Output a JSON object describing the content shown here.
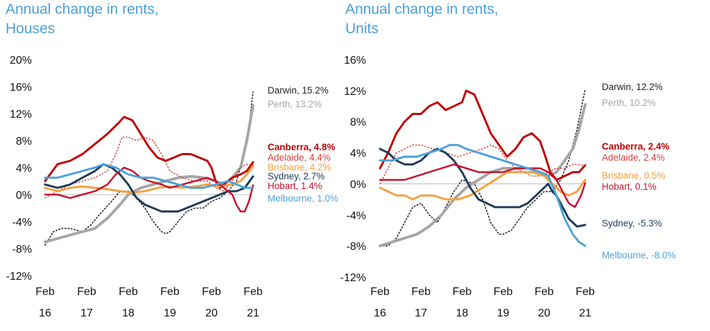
{
  "chart_data": [
    {
      "type": "line",
      "title_line1": "Annual change in rents,",
      "title_line2": "Houses",
      "ylim": [
        -12,
        20
      ],
      "yticks": [
        -12,
        -8,
        -4,
        0,
        4,
        8,
        12,
        16,
        20
      ],
      "ytick_labels": [
        "-12%",
        "-8%",
        "-4%",
        "0%",
        "4%",
        "8%",
        "12%",
        "16%",
        "20%"
      ],
      "xlim": [
        2016.0,
        2021.0
      ],
      "xtick_labels": [
        {
          "month": "Feb",
          "year": "16"
        },
        {
          "month": "Feb",
          "year": "17"
        },
        {
          "month": "Feb",
          "year": "18"
        },
        {
          "month": "Feb",
          "year": "19"
        },
        {
          "month": "Feb",
          "year": "20"
        },
        {
          "month": "Feb",
          "year": "21"
        }
      ],
      "grid": false,
      "zero_line": true,
      "series": [
        {
          "name": "Darwin",
          "label": "Darwin, 15.2%",
          "color": "#222222",
          "style": "dotted",
          "width": 1.6,
          "bold": false,
          "x": [
            2016.0,
            2016.2,
            2016.4,
            2016.6,
            2016.9,
            2017.1,
            2017.3,
            2017.6,
            2017.8,
            2018.0,
            2018.2,
            2018.4,
            2018.6,
            2018.8,
            2018.9,
            2019.0,
            2019.2,
            2019.4,
            2019.6,
            2019.8,
            2020.0,
            2020.2,
            2020.4,
            2020.6,
            2020.75,
            2020.9,
            2021.0
          ],
          "y": [
            -7.5,
            -5.5,
            -5.0,
            -5.0,
            -5.5,
            -4.5,
            -3.0,
            -1.0,
            0.5,
            0.5,
            -0.5,
            -2.0,
            -4.0,
            -5.5,
            -5.8,
            -5.5,
            -4.0,
            -2.5,
            -2.0,
            -2.0,
            -1.0,
            -0.5,
            0.5,
            2.0,
            5.0,
            10.0,
            15.2
          ]
        },
        {
          "name": "Perth",
          "label": "Perth, 13.2%",
          "color": "#a6a6a6",
          "style": "solid",
          "width": 4,
          "bold": false,
          "x": [
            2016.0,
            2016.3,
            2016.6,
            2016.9,
            2017.2,
            2017.5,
            2017.8,
            2018.0,
            2018.3,
            2018.6,
            2018.9,
            2019.2,
            2019.5,
            2019.8,
            2020.1,
            2020.3,
            2020.5,
            2020.7,
            2020.85,
            2021.0
          ],
          "y": [
            -7.0,
            -6.5,
            -6.0,
            -5.5,
            -5.0,
            -3.5,
            -1.5,
            0.0,
            1.0,
            1.5,
            2.0,
            2.5,
            2.7,
            2.5,
            2.0,
            1.5,
            2.5,
            4.0,
            8.0,
            13.2
          ]
        },
        {
          "name": "Canberra",
          "label": "Canberra, 4.8%",
          "color": "#c00000",
          "style": "solid",
          "width": 3,
          "bold": true,
          "x": [
            2016.0,
            2016.3,
            2016.6,
            2016.9,
            2017.2,
            2017.5,
            2017.75,
            2017.9,
            2018.1,
            2018.3,
            2018.5,
            2018.7,
            2018.9,
            2019.1,
            2019.3,
            2019.5,
            2019.7,
            2019.9,
            2020.0,
            2020.1,
            2020.2,
            2020.3,
            2020.5,
            2020.7,
            2020.85,
            2021.0
          ],
          "y": [
            2.0,
            4.5,
            5.0,
            6.0,
            7.5,
            9.0,
            10.5,
            11.5,
            11.0,
            9.0,
            7.0,
            5.5,
            5.0,
            5.5,
            6.0,
            6.0,
            5.5,
            5.0,
            4.0,
            2.0,
            1.0,
            1.5,
            2.5,
            3.0,
            3.5,
            4.8
          ]
        },
        {
          "name": "Adelaide",
          "label": "Adelaide, 4.4%",
          "color": "#d44040",
          "style": "dotted",
          "width": 1.4,
          "bold": false,
          "x": [
            2016.0,
            2016.3,
            2016.6,
            2016.9,
            2017.2,
            2017.5,
            2017.7,
            2017.85,
            2018.0,
            2018.2,
            2018.4,
            2018.6,
            2018.8,
            2019.0,
            2019.3,
            2019.6,
            2019.9,
            2020.1,
            2020.3,
            2020.5,
            2020.7,
            2020.85,
            2021.0
          ],
          "y": [
            -0.5,
            0.5,
            1.5,
            2.0,
            2.5,
            3.5,
            6.0,
            8.5,
            8.5,
            8.0,
            8.5,
            8.0,
            6.0,
            3.5,
            2.5,
            2.0,
            2.0,
            1.0,
            0.5,
            2.0,
            4.0,
            4.5,
            4.4
          ]
        },
        {
          "name": "Brisbane",
          "label": "Brisbane, 4.2%",
          "color": "#f5a040",
          "style": "solid",
          "width": 3,
          "bold": false,
          "x": [
            2016.0,
            2016.3,
            2016.6,
            2016.9,
            2017.2,
            2017.5,
            2017.8,
            2018.1,
            2018.4,
            2018.7,
            2019.0,
            2019.3,
            2019.6,
            2019.9,
            2020.2,
            2020.5,
            2020.7,
            2020.85,
            2021.0
          ],
          "y": [
            1.0,
            0.5,
            1.0,
            1.2,
            1.0,
            0.8,
            0.5,
            0.3,
            0.5,
            1.0,
            1.2,
            1.0,
            1.2,
            1.5,
            1.2,
            1.5,
            2.0,
            3.0,
            4.2
          ]
        },
        {
          "name": "Sydney",
          "label": "Sydney, 2.7%",
          "color": "#1f3b57",
          "style": "solid",
          "width": 3,
          "bold": false,
          "x": [
            2016.0,
            2016.3,
            2016.6,
            2016.9,
            2017.2,
            2017.4,
            2017.6,
            2017.8,
            2018.0,
            2018.2,
            2018.4,
            2018.6,
            2018.8,
            2019.0,
            2019.2,
            2019.4,
            2019.6,
            2019.8,
            2020.0,
            2020.2,
            2020.4,
            2020.6,
            2020.8,
            2021.0
          ],
          "y": [
            1.5,
            1.0,
            1.5,
            2.5,
            3.5,
            4.5,
            4.0,
            3.0,
            1.5,
            -0.5,
            -1.5,
            -2.0,
            -2.5,
            -2.5,
            -2.5,
            -2.0,
            -1.5,
            -1.0,
            -0.5,
            0.0,
            0.5,
            0.5,
            1.0,
            2.7
          ]
        },
        {
          "name": "Hobart",
          "label": "Hobart, 1.4%",
          "color": "#c8102e",
          "style": "solid",
          "width": 2.5,
          "bold": false,
          "x": [
            2016.0,
            2016.3,
            2016.6,
            2016.9,
            2017.2,
            2017.5,
            2017.7,
            2017.9,
            2018.1,
            2018.3,
            2018.5,
            2018.8,
            2019.0,
            2019.3,
            2019.6,
            2019.9,
            2020.1,
            2020.3,
            2020.5,
            2020.6,
            2020.7,
            2020.8,
            2020.9,
            2021.0
          ],
          "y": [
            0.0,
            0.0,
            -0.5,
            0.0,
            0.5,
            1.5,
            3.0,
            4.0,
            3.5,
            2.5,
            2.0,
            1.5,
            1.0,
            1.5,
            2.0,
            2.5,
            2.0,
            1.0,
            0.0,
            -1.5,
            -2.5,
            -2.5,
            -1.0,
            1.4
          ]
        },
        {
          "name": "Melbourne",
          "label": "Melbourne, 1.0%",
          "color": "#4ba3d9",
          "style": "solid",
          "width": 3,
          "bold": false,
          "x": [
            2016.0,
            2016.3,
            2016.6,
            2016.9,
            2017.2,
            2017.4,
            2017.7,
            2018.0,
            2018.3,
            2018.6,
            2018.9,
            2019.2,
            2019.5,
            2019.8,
            2020.1,
            2020.4,
            2020.6,
            2020.8,
            2021.0
          ],
          "y": [
            2.5,
            2.5,
            3.0,
            3.5,
            4.0,
            4.5,
            4.0,
            3.0,
            2.5,
            2.5,
            2.0,
            1.5,
            1.0,
            1.0,
            1.5,
            2.0,
            1.5,
            1.0,
            1.0
          ]
        }
      ]
    },
    {
      "type": "line",
      "title_line1": "Annual change in rents,",
      "title_line2": "Units",
      "ylim": [
        -12,
        16
      ],
      "yticks": [
        -12,
        -8,
        -4,
        0,
        4,
        8,
        12,
        16
      ],
      "ytick_labels": [
        "-12%",
        "-8%",
        "-4%",
        "0%",
        "4%",
        "8%",
        "12%",
        "16%"
      ],
      "xlim": [
        2016.0,
        2021.0
      ],
      "xtick_labels": [
        {
          "month": "Feb",
          "year": "16"
        },
        {
          "month": "Feb",
          "year": "17"
        },
        {
          "month": "Feb",
          "year": "18"
        },
        {
          "month": "Feb",
          "year": "19"
        },
        {
          "month": "Feb",
          "year": "20"
        },
        {
          "month": "Feb",
          "year": "21"
        }
      ],
      "grid": false,
      "zero_line": true,
      "series": [
        {
          "name": "Darwin",
          "label": "Darwin, 12.2%",
          "color": "#222222",
          "style": "dotted",
          "width": 1.6,
          "bold": false,
          "x": [
            2016.0,
            2016.2,
            2016.4,
            2016.6,
            2016.8,
            2017.0,
            2017.2,
            2017.4,
            2017.6,
            2017.8,
            2018.0,
            2018.3,
            2018.5,
            2018.7,
            2018.9,
            2019.0,
            2019.2,
            2019.4,
            2019.6,
            2019.8,
            2020.0,
            2020.2,
            2020.4,
            2020.6,
            2020.8,
            2021.0
          ],
          "y": [
            -8.0,
            -8.0,
            -7.0,
            -5.0,
            -3.0,
            -2.5,
            -4.0,
            -5.0,
            -3.0,
            -1.0,
            0.5,
            0.0,
            -2.0,
            -5.0,
            -6.5,
            -6.5,
            -6.0,
            -4.5,
            -3.0,
            -2.0,
            -1.0,
            -1.0,
            0.5,
            3.0,
            7.0,
            12.2
          ]
        },
        {
          "name": "Perth",
          "label": "Perth, 10.2%",
          "color": "#a6a6a6",
          "style": "solid",
          "width": 4,
          "bold": false,
          "x": [
            2016.0,
            2016.3,
            2016.6,
            2016.9,
            2017.2,
            2017.5,
            2017.8,
            2018.1,
            2018.4,
            2018.7,
            2019.0,
            2019.3,
            2019.6,
            2019.9,
            2020.1,
            2020.3,
            2020.5,
            2020.7,
            2020.85,
            2021.0
          ],
          "y": [
            -8.0,
            -7.5,
            -7.0,
            -6.5,
            -5.5,
            -4.0,
            -2.0,
            -0.5,
            0.5,
            1.5,
            2.0,
            2.0,
            2.0,
            1.5,
            1.0,
            1.5,
            3.0,
            4.5,
            7.0,
            10.2
          ]
        },
        {
          "name": "Canberra",
          "label": "Canberra, 2.4%",
          "color": "#c00000",
          "style": "solid",
          "width": 3,
          "bold": true,
          "x": [
            2016.0,
            2016.2,
            2016.4,
            2016.6,
            2016.8,
            2017.0,
            2017.2,
            2017.4,
            2017.6,
            2017.8,
            2018.0,
            2018.1,
            2018.3,
            2018.5,
            2018.7,
            2018.9,
            2019.1,
            2019.3,
            2019.5,
            2019.7,
            2019.9,
            2020.0,
            2020.15,
            2020.3,
            2020.5,
            2020.7,
            2020.85,
            2021.0
          ],
          "y": [
            2.0,
            4.0,
            6.5,
            8.0,
            9.0,
            9.0,
            10.0,
            10.5,
            9.5,
            10.0,
            10.5,
            12.0,
            11.5,
            9.0,
            6.5,
            5.0,
            3.5,
            4.5,
            6.0,
            6.5,
            5.5,
            4.0,
            1.5,
            0.5,
            1.0,
            1.5,
            1.5,
            2.4
          ]
        },
        {
          "name": "Adelaide",
          "label": "Adelaide, 2.4%",
          "color": "#d44040",
          "style": "dotted",
          "width": 1.4,
          "bold": false,
          "x": [
            2016.0,
            2016.2,
            2016.4,
            2016.6,
            2016.8,
            2017.0,
            2017.3,
            2017.6,
            2017.9,
            2018.2,
            2018.5,
            2018.7,
            2018.9,
            2019.1,
            2019.3,
            2019.5,
            2019.7,
            2019.9,
            2020.1,
            2020.3,
            2020.5,
            2020.7,
            2021.0
          ],
          "y": [
            0.0,
            2.0,
            4.0,
            4.5,
            5.0,
            5.0,
            4.5,
            4.0,
            3.5,
            4.0,
            4.5,
            5.0,
            4.5,
            3.0,
            2.0,
            1.5,
            1.0,
            1.0,
            1.5,
            2.0,
            2.0,
            2.5,
            2.4
          ]
        },
        {
          "name": "Brisbane",
          "label": "Brisbane, 0.5%",
          "color": "#f5a040",
          "style": "solid",
          "width": 3,
          "bold": false,
          "x": [
            2016.0,
            2016.2,
            2016.4,
            2016.6,
            2016.8,
            2017.0,
            2017.3,
            2017.6,
            2017.9,
            2018.2,
            2018.5,
            2018.8,
            2019.1,
            2019.4,
            2019.7,
            2020.0,
            2020.2,
            2020.4,
            2020.6,
            2020.8,
            2021.0
          ],
          "y": [
            -0.5,
            -1.0,
            -1.5,
            -1.5,
            -2.0,
            -1.5,
            -1.5,
            -2.0,
            -2.0,
            -1.5,
            -0.5,
            0.5,
            1.5,
            1.5,
            1.5,
            1.0,
            0.0,
            -1.0,
            -1.5,
            -1.0,
            0.5
          ]
        },
        {
          "name": "Sydney",
          "label": "Sydney, -5.3%",
          "color": "#1f3b57",
          "style": "solid",
          "width": 3,
          "bold": false,
          "x": [
            2016.0,
            2016.2,
            2016.4,
            2016.6,
            2016.8,
            2017.0,
            2017.2,
            2017.4,
            2017.6,
            2017.8,
            2018.0,
            2018.2,
            2018.4,
            2018.6,
            2018.8,
            2019.0,
            2019.2,
            2019.4,
            2019.6,
            2019.8,
            2020.0,
            2020.1,
            2020.2,
            2020.3,
            2020.45,
            2020.6,
            2020.8,
            2021.0
          ],
          "y": [
            4.5,
            4.0,
            3.0,
            2.5,
            2.5,
            3.0,
            4.0,
            4.5,
            4.0,
            3.0,
            1.5,
            -0.5,
            -2.0,
            -2.5,
            -3.0,
            -3.0,
            -3.0,
            -3.0,
            -2.5,
            -1.5,
            -0.5,
            0.0,
            -1.0,
            -1.5,
            -3.0,
            -4.5,
            -5.5,
            -5.3
          ]
        },
        {
          "name": "Hobart",
          "label": "Hobart, 0.1%",
          "color": "#c8102e",
          "style": "solid",
          "width": 2.5,
          "bold": false,
          "x": [
            2016.0,
            2016.3,
            2016.6,
            2016.9,
            2017.2,
            2017.5,
            2017.8,
            2018.1,
            2018.4,
            2018.7,
            2019.0,
            2019.3,
            2019.6,
            2019.9,
            2020.1,
            2020.3,
            2020.5,
            2020.6,
            2020.75,
            2020.9,
            2021.0
          ],
          "y": [
            0.5,
            0.5,
            0.5,
            1.0,
            1.5,
            2.0,
            2.5,
            2.0,
            1.5,
            1.5,
            1.5,
            2.0,
            2.0,
            2.0,
            1.5,
            0.5,
            -1.5,
            -2.5,
            -3.0,
            -1.5,
            0.1
          ]
        },
        {
          "name": "Melbourne",
          "label": "Melbourne, -8.0%",
          "color": "#4ba3d9",
          "style": "solid",
          "width": 3,
          "bold": false,
          "x": [
            2016.0,
            2016.3,
            2016.6,
            2016.9,
            2017.2,
            2017.5,
            2017.7,
            2017.9,
            2018.1,
            2018.4,
            2018.7,
            2019.0,
            2019.3,
            2019.6,
            2019.9,
            2020.1,
            2020.3,
            2020.5,
            2020.7,
            2020.85,
            2021.0
          ],
          "y": [
            3.0,
            3.0,
            3.5,
            3.5,
            4.0,
            4.5,
            5.0,
            5.0,
            4.5,
            4.0,
            3.5,
            3.0,
            2.5,
            2.0,
            1.5,
            1.0,
            -1.5,
            -4.5,
            -6.5,
            -7.5,
            -8.0
          ]
        }
      ]
    }
  ]
}
